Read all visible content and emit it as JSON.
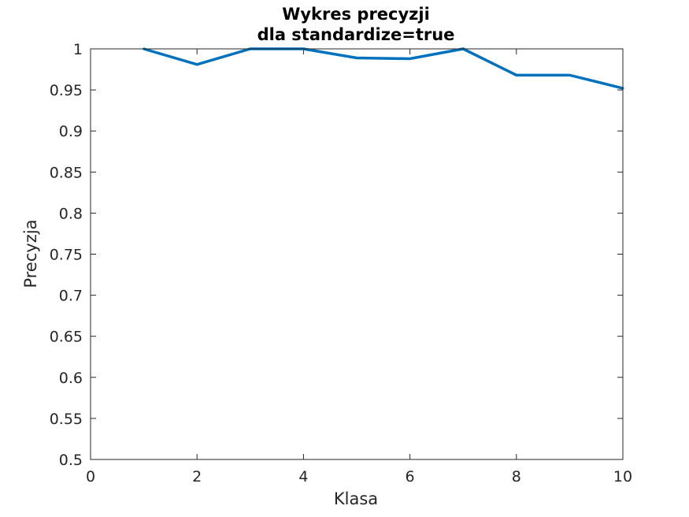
{
  "chart_data": {
    "type": "line",
    "title_lines": [
      "Wykres precyzji",
      "dla standardize=true"
    ],
    "xlabel": "Klasa",
    "ylabel": "Precyzja",
    "xlim": [
      0,
      10
    ],
    "ylim": [
      0.5,
      1
    ],
    "xticks": [
      0,
      2,
      4,
      6,
      8,
      10
    ],
    "yticks": [
      0.5,
      0.55,
      0.6,
      0.65,
      0.7,
      0.75,
      0.8,
      0.85,
      0.9,
      0.95,
      1
    ],
    "ytick_labels": [
      "0.5",
      "0.55",
      "0.6",
      "0.65",
      "0.7",
      "0.75",
      "0.8",
      "0.85",
      "0.9",
      "0.95",
      "1"
    ],
    "grid": false,
    "box": true,
    "series": [
      {
        "x": [
          1,
          2,
          3,
          4,
          5,
          6,
          7,
          8,
          9,
          10
        ],
        "values": [
          1.0,
          0.981,
          1.0,
          1.0,
          0.989,
          0.988,
          1.0,
          0.968,
          0.968,
          0.952
        ],
        "color": "#0072BD"
      }
    ]
  },
  "colors": {
    "line": "#0072BD",
    "axes": "#262626",
    "background": "#ffffff"
  }
}
